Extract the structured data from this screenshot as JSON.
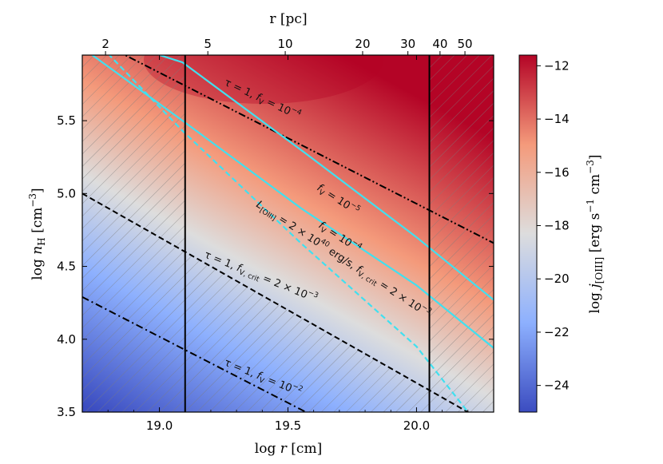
{
  "chart_data": {
    "type": "heatmap",
    "title": "",
    "xlabel": "log r [cm]",
    "ylabel": "log n_H [cm^-3]",
    "top_xlabel": "r [pc]",
    "colorbar_label": "log j_[OIII] [erg s^-1 cm^-3]",
    "xlim": [
      18.7,
      20.3
    ],
    "ylim": [
      3.5,
      5.95
    ],
    "colorbar_range": [
      -25,
      -11.6
    ],
    "x_ticks": [
      19.0,
      19.5,
      20.0
    ],
    "x_tick_labels": [
      "19.0",
      "19.5",
      "20.0"
    ],
    "y_ticks": [
      3.5,
      4.0,
      4.5,
      5.0,
      5.5
    ],
    "y_tick_labels": [
      "3.5",
      "4.0",
      "4.5",
      "5.0",
      "5.5"
    ],
    "top_ticks_pc": [
      2,
      5,
      10,
      20,
      30,
      40,
      50
    ],
    "top_tick_labels": [
      "2",
      "5",
      "10",
      "20",
      "30",
      "40",
      "50"
    ],
    "colorbar_ticks": [
      -12,
      -14,
      -16,
      -18,
      -20,
      -22,
      -24
    ],
    "colorbar_tick_labels": [
      "−12",
      "−14",
      "−16",
      "−18",
      "−20",
      "−22",
      "−24"
    ],
    "colormap": "coolwarm",
    "colormap_stops": [
      "#3b4cc0",
      "#8db0fe",
      "#dddddd",
      "#f49a7b",
      "#b40426"
    ],
    "hatched_regions": "outside 19.1 < log r < 20.05 and below the f_V,crit = 2×10^-3 line",
    "vertical_lines_x": [
      19.1,
      20.05
    ],
    "series": [
      {
        "name": "tau = 1, f_V = 10^-4",
        "style": "dash-dot-dot",
        "color": "#000000",
        "x": [
          18.7,
          20.3
        ],
        "y": [
          6.1,
          4.66
        ]
      },
      {
        "name": "f_V,crit = 2x10^-3",
        "style": "dashed",
        "color": "#000000",
        "x": [
          18.7,
          20.3
        ],
        "y": [
          5.0,
          3.4
        ]
      },
      {
        "name": "tau = 1, f_V = 10^-2",
        "style": "dash-dot",
        "color": "#000000",
        "x": [
          18.7,
          19.57
        ],
        "y": [
          4.29,
          3.5
        ]
      },
      {
        "name": "f_V = 10^-5",
        "style": "solid",
        "color": "#40e0f0",
        "x": [
          18.7,
          19.09,
          19.55,
          20.0,
          20.3
        ],
        "y": [
          6.12,
          5.9,
          5.3,
          4.7,
          4.27
        ]
      },
      {
        "name": "f_V = 10^-4",
        "style": "solid",
        "color": "#40e0f0",
        "x": [
          18.7,
          19.09,
          19.55,
          20.0,
          20.3
        ],
        "y": [
          6.0,
          5.5,
          4.9,
          4.37,
          3.94
        ]
      },
      {
        "name": "L_[OIII] = 2x10^40 erg/s, f_V,crit = 2x10^-3",
        "style": "dashed",
        "color": "#40e0f0",
        "x": [
          18.8,
          19.09,
          19.55,
          20.0,
          20.2
        ],
        "y": [
          5.96,
          5.43,
          4.66,
          3.95,
          3.5
        ]
      }
    ],
    "annotations": [
      {
        "text": "τ = 1, f_V = 10^-4"
      },
      {
        "text": "f_V = 10^-5"
      },
      {
        "text": "f_V = 10^-4"
      },
      {
        "text": "L_[OIII] = 2 × 10^40 erg/s, f_V,crit = 2 × 10^-3"
      },
      {
        "text": "τ = 1, f_V,crit = 2 × 10^-3"
      },
      {
        "text": "τ = 1, f_V = 10^-2"
      }
    ]
  }
}
